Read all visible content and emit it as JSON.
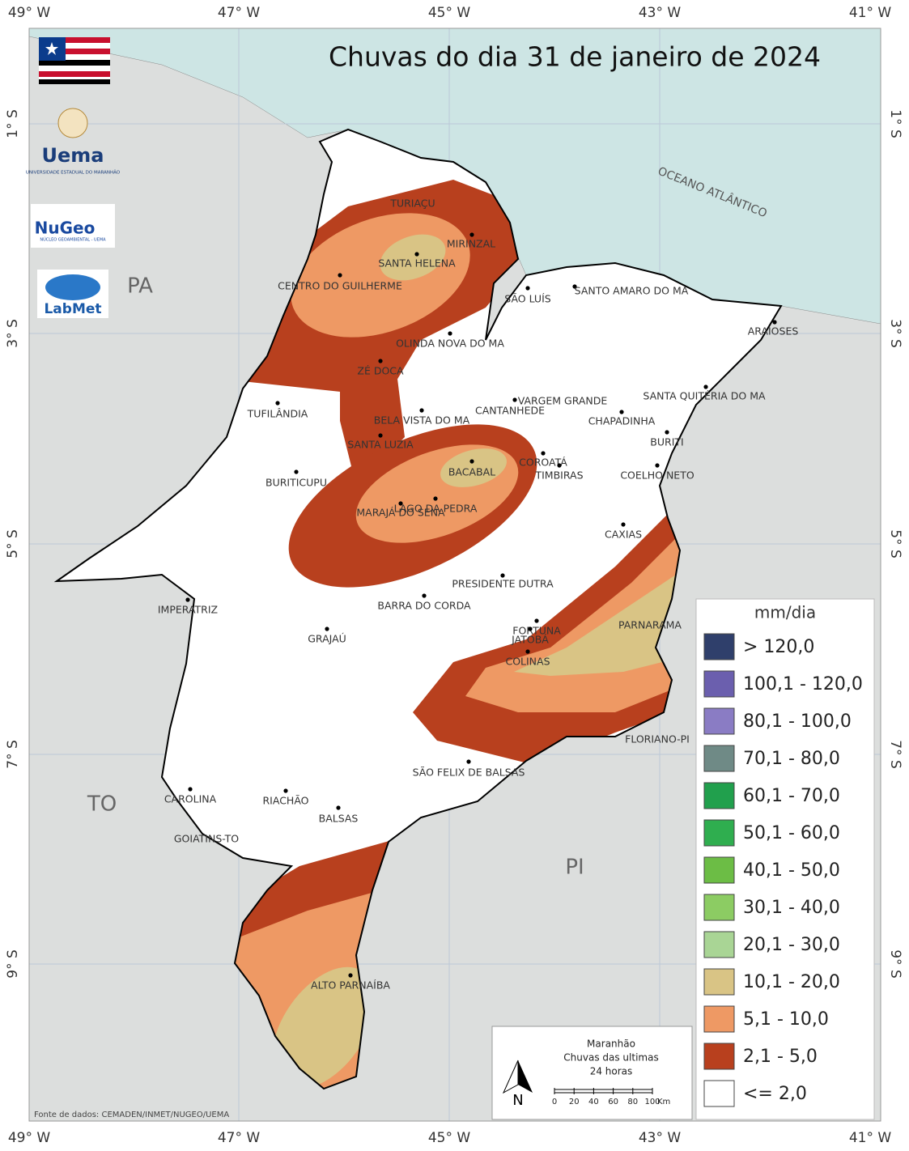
{
  "title": "Chuvas do dia 31 de janeiro de 2024",
  "longitudes": [
    "49° W",
    "47° W",
    "45° W",
    "43° W",
    "41° W"
  ],
  "latitudes": [
    "1° S",
    "3° S",
    "5° S",
    "7° S",
    "9° S"
  ],
  "regions": [
    "PA",
    "TO",
    "PI"
  ],
  "ocean": "OCEANO ATLÂNTICO",
  "cities": [
    "TURIAÇU",
    "MIRINZAL",
    "SANTA HELENA",
    "CENTRO DO GUILHERME",
    "SÃO LUÍS",
    "SANTO AMARO DO MA",
    "ARAIOSES",
    "OLINDA NOVA DO MA",
    "ZÉ DOCA",
    "VARGEM GRANDE",
    "SANTA QUITÉRIA DO MA",
    "TUFILÂNDIA",
    "CANTANHEDE",
    "CHAPADINHA",
    "BELA VISTA DO MA",
    "BURITI",
    "SANTA LUZIA",
    "COROATÁ",
    "BACABAL",
    "TIMBIRAS",
    "COELHO NETO",
    "BURITICUPU",
    "LAGO DA PEDRA",
    "MARAJÁ DO SENA",
    "CAXIAS",
    "PRESIDENTE DUTRA",
    "BARRA DO CORDA",
    "IMPERATRIZ",
    "GRAJAÚ",
    "FORTUNA",
    "PARNARAMA",
    "JATOBÁ",
    "COLINAS",
    "FLORIANO-PI",
    "SÃO FELIX DE BALSAS",
    "CAROLINA",
    "RIACHÃO",
    "BALSAS",
    "GOIATINS-TO",
    "ALTO PARNAÍBA"
  ],
  "legend": {
    "title": "mm/dia",
    "classes": [
      {
        "label": "> 120,0",
        "color": "#2f3f6b"
      },
      {
        "label": "100,1 - 120,0",
        "color": "#6b5fae"
      },
      {
        "label": "80,1 - 100,0",
        "color": "#8a7cc4"
      },
      {
        "label": "70,1 - 80,0",
        "color": "#6f8a86"
      },
      {
        "label": "60,1 - 70,0",
        "color": "#21a04d"
      },
      {
        "label": "50,1 - 60,0",
        "color": "#2fae4f"
      },
      {
        "label": "40,1 - 50,0",
        "color": "#6cbd45"
      },
      {
        "label": "30,1 - 40,0",
        "color": "#8ccc63"
      },
      {
        "label": "20,1 - 30,0",
        "color": "#a9d595"
      },
      {
        "label": "10,1 - 20,0",
        "color": "#d9c485"
      },
      {
        "label": "5,1 - 10,0",
        "color": "#ee9964"
      },
      {
        "label": "2,1 - 5,0",
        "color": "#b8401e"
      },
      {
        "label": "<= 2,0",
        "color": "#ffffff"
      }
    ]
  },
  "scale_box": {
    "lines": [
      "Maranhão",
      "Chuvas das ultimas",
      "24 horas"
    ],
    "north": "N",
    "ticks": [
      0,
      20,
      40,
      60,
      80,
      100
    ],
    "unit": "Km"
  },
  "source": "Fonte de dados: CEMADEN/INMET/NUGEO/UEMA",
  "logos": [
    "Uema",
    "UNIVERSIDADE ESTADUAL DO MARANHÃO",
    "NuGeo",
    "NÚCLEO GEOAMBIENTAL - UEMA",
    "LabMet"
  ]
}
